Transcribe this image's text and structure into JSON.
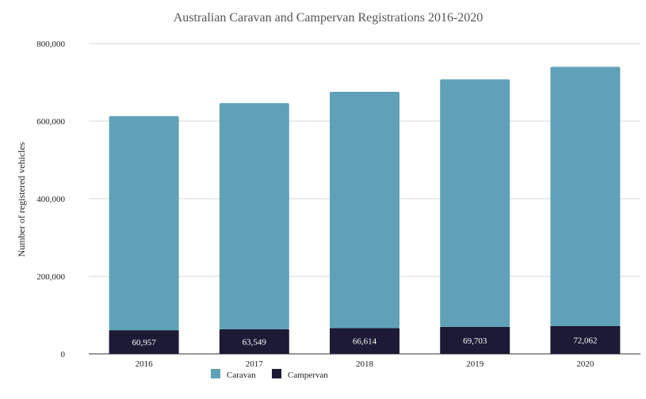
{
  "chart_data": {
    "type": "bar",
    "stacked": true,
    "title": "Australian Caravan and Campervan Registrations 2016-2020",
    "xlabel": "",
    "ylabel": "Number of registered vehicles",
    "categories": [
      "2016",
      "2017",
      "2018",
      "2019",
      "2020"
    ],
    "series": [
      {
        "name": "Campervan",
        "color": "#1c1a35",
        "values": [
          60957,
          63549,
          66614,
          69703,
          72062
        ],
        "labels": [
          "60,957",
          "63,549",
          "66,614",
          "69,703",
          "72,062"
        ]
      },
      {
        "name": "Caravan",
        "color": "#5fa2b8",
        "values": [
          552000,
          583000,
          609000,
          638000,
          668000
        ]
      }
    ],
    "ylim": [
      0,
      800000
    ],
    "yticks": [
      0,
      200000,
      400000,
      600000,
      800000
    ],
    "ytick_labels": [
      "0",
      "200,000",
      "400,000",
      "600,000",
      "800,000"
    ],
    "grid": true,
    "legend": {
      "placement": "bottom",
      "entries": [
        "Caravan",
        "Campervan"
      ]
    }
  }
}
